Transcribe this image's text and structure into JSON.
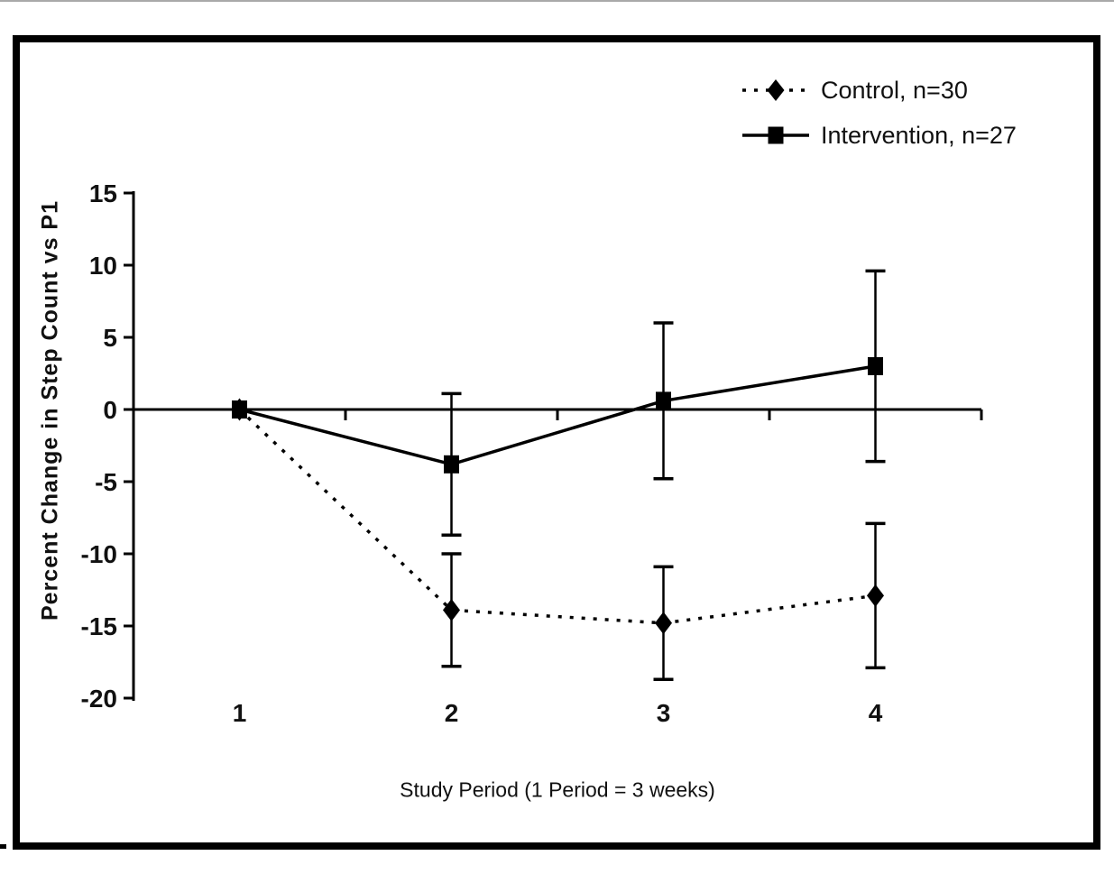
{
  "figure": {
    "background_color": "#ffffff",
    "frame_color": "#000000",
    "axis_color": "#000000"
  },
  "chart_data": {
    "type": "line",
    "title": "",
    "xlabel": "Study Period (1 Period = 3 weeks)",
    "ylabel": "Percent Change in Step Count vs P1",
    "x": [
      1,
      2,
      3,
      4
    ],
    "xticks": [
      "1",
      "2",
      "3",
      "4"
    ],
    "yticks": [
      15,
      10,
      5,
      0,
      -5,
      -10,
      -15,
      -20
    ],
    "ylim": [
      -20,
      15
    ],
    "grid": false,
    "legend_position": "top-right",
    "series": [
      {
        "name": "Control, n=30",
        "marker": "diamond",
        "line_style": "dotted",
        "color": "#000000",
        "values": [
          0,
          -13.9,
          -14.8,
          -12.9
        ],
        "error": [
          0,
          3.9,
          3.9,
          5.0
        ]
      },
      {
        "name": "Intervention, n=27",
        "marker": "square",
        "line_style": "solid",
        "color": "#000000",
        "values": [
          0,
          -3.8,
          0.6,
          3.0
        ],
        "error": [
          0,
          4.9,
          5.4,
          6.6
        ]
      }
    ]
  }
}
